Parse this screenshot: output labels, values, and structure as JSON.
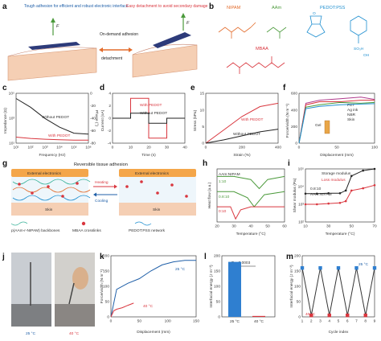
{
  "panels": {
    "a": {
      "label": "a",
      "left_caption": "Tough adhesion for efficient and robust electronic interface",
      "right_caption": "Easy detachment to avoid secondary damage",
      "arrow_top": "On-demand adhesion",
      "arrow_bottom": "detachment",
      "force_left": "F",
      "force_right": "F"
    },
    "b": {
      "label": "b",
      "nipam": "NIPAM",
      "aam": "AAm",
      "pedot": "PEDOT:PSS",
      "mbaa": "MBAA",
      "pss_sub": "SO₃H",
      "pss_o": "O",
      "oh": "OH"
    },
    "c": {
      "label": "c",
      "ylabel": "Impedance (Ω)",
      "ylabel2": "Phase (°)",
      "xlabel": "Frequency (Hz)",
      "legend1": "Without PEDOT",
      "legend2": "With PEDOT"
    },
    "d": {
      "label": "d",
      "ylabel": "Current (nA)",
      "xlabel": "Time (s)",
      "legend1": "With PEDOT",
      "legend2": "Without PEDOT"
    },
    "e": {
      "label": "e",
      "ylabel": "Stress (kPa)",
      "xlabel": "Strain (%)",
      "legend1": "With PEDOT",
      "legend2": "Without PEDOT"
    },
    "f": {
      "label": "f",
      "ylabel": "Force/width (N m⁻¹)",
      "xlabel": "Displacement (mm)",
      "legend": [
        "PET",
        "Ag ink",
        "NBR",
        "Skin"
      ],
      "gel": "Gel"
    },
    "g": {
      "label": "g",
      "title": "Reversible tissue adhesion",
      "ext_left": "External electronics",
      "ext_right": "External electronics",
      "heating": "Heating",
      "cooling": "Cooling",
      "skin_left": "Skin",
      "skin_right": "Skin",
      "legend1": "p(AAm-r-NIPAM) backbones",
      "legend2": "MBAA crosslinks",
      "legend3": "PEDOT:PSS network"
    },
    "h": {
      "label": "h",
      "ylabel": "Heat flow (a.u.)",
      "xlabel": "Temperature (°C)",
      "header": "AAm:NIPAM",
      "r1": "1:10",
      "r2": "0.8:10",
      "r3": "0:10"
    },
    "i": {
      "label": "i",
      "ylabel": "Shear modulus (Pa)",
      "xlabel": "Temperature (°C)",
      "legend1": "Storage modulus",
      "legend2": "Loss modulus",
      "ratio": "0.8:10",
      "ratio2": "AAm:NIPAM"
    },
    "j": {
      "label": "j",
      "t1": "25 °C",
      "t2": "40 °C"
    },
    "k": {
      "label": "k",
      "ylabel": "Force/width (N m⁻¹)",
      "xlabel": "Displacement (mm)",
      "legend1": "25 °C",
      "legend2": "40 °C"
    },
    "l": {
      "label": "l",
      "ylabel": "Interfacial energy (J m⁻²)",
      "pval": "P = 0.0003",
      "c1": "25 °C",
      "c2": "40 °C"
    },
    "m": {
      "label": "m",
      "ylabel": "Interfacial energy (J m⁻²)",
      "xlabel": "Cycle index",
      "t1": "25 °C",
      "t2": "40 °C"
    }
  },
  "colors": {
    "red": "#d9363e",
    "blue": "#1f5fa8",
    "black": "#222222",
    "orange": "#e36c2c",
    "green": "#4b9a3b",
    "lightblue": "#1f8fd0",
    "skin": "#f2c6a8"
  },
  "chart_data": [
    {
      "panel": "c",
      "type": "line",
      "x": [
        10,
        100,
        1000,
        10000,
        100000,
        1000000
      ],
      "xlog": true,
      "ylog": true,
      "ylim": [
        10,
        1000000
      ],
      "xticks": [
        "10¹",
        "10²",
        "10³",
        "10⁴",
        "10⁵",
        "10⁶"
      ],
      "yticks": [
        "10¹",
        "10³",
        "10⁵"
      ],
      "y2ticks": [
        "0",
        "-20",
        "-40",
        "-60",
        "-80"
      ],
      "series": [
        {
          "name": "Without PEDOT",
          "values": [
            300000,
            40000,
            3000,
            400,
            100,
            80
          ]
        },
        {
          "name": "With PEDOT",
          "values": [
            40,
            30,
            25,
            22,
            20,
            20
          ]
        }
      ]
    },
    {
      "panel": "d",
      "type": "line",
      "xticks": [
        "0",
        "10",
        "20",
        "30",
        "40"
      ],
      "yticks": [
        "-4",
        "-2",
        "0",
        "2",
        "4"
      ],
      "series": [
        {
          "name": "With PEDOT",
          "x": [
            0,
            10,
            10,
            20,
            20,
            30,
            30,
            40
          ],
          "values": [
            0,
            0,
            4,
            4,
            -4,
            -4,
            0,
            0
          ]
        },
        {
          "name": "Without PEDOT",
          "x": [
            0,
            10,
            10,
            20,
            20,
            30,
            30,
            40
          ],
          "values": [
            0,
            0,
            1,
            1,
            -1,
            -1,
            0,
            0
          ]
        }
      ]
    },
    {
      "panel": "e",
      "type": "line",
      "xticks": [
        "0",
        "200",
        "400"
      ],
      "yticks": [
        "0",
        "5",
        "10",
        "15"
      ],
      "series": [
        {
          "name": "With PEDOT",
          "x": [
            0,
            100,
            200,
            300,
            400
          ],
          "values": [
            0,
            4,
            8,
            11,
            12
          ]
        },
        {
          "name": "Without PEDOT",
          "x": [
            0,
            100,
            200,
            300,
            400
          ],
          "values": [
            0,
            1,
            2.2,
            3.4,
            4.2
          ]
        }
      ]
    },
    {
      "panel": "f",
      "type": "line",
      "xticks": [
        "0",
        "50",
        "100"
      ],
      "yticks": [
        "0",
        "200",
        "400",
        "600"
      ],
      "series": [
        {
          "name": "PET",
          "x": [
            0,
            10,
            30,
            60,
            90,
            110
          ],
          "values": [
            0,
            520,
            560,
            580,
            600,
            570
          ]
        },
        {
          "name": "Ag ink",
          "x": [
            0,
            10,
            30,
            60,
            90,
            110
          ],
          "values": [
            0,
            500,
            540,
            540,
            560,
            560
          ]
        },
        {
          "name": "NBR",
          "x": [
            0,
            10,
            30,
            60,
            90,
            110
          ],
          "values": [
            0,
            470,
            500,
            530,
            520,
            530
          ]
        },
        {
          "name": "Skin",
          "x": [
            0,
            10,
            30,
            60,
            90,
            110
          ],
          "values": [
            0,
            450,
            480,
            500,
            510,
            515
          ]
        }
      ]
    },
    {
      "panel": "h",
      "type": "line",
      "xticks": [
        "20",
        "30",
        "40",
        "50",
        "60"
      ],
      "series": [
        {
          "name": "1:10",
          "x": [
            20,
            30,
            40,
            45,
            50,
            60
          ],
          "values": [
            3,
            3,
            2.8,
            2.2,
            2.8,
            3
          ]
        },
        {
          "name": "0.8:10",
          "x": [
            20,
            30,
            38,
            42,
            48,
            60
          ],
          "values": [
            2,
            2,
            1.6,
            1.0,
            1.8,
            2
          ]
        },
        {
          "name": "0:10",
          "x": [
            20,
            28,
            31,
            34,
            40,
            60
          ],
          "values": [
            1,
            1,
            0.2,
            0.8,
            1,
            1
          ]
        }
      ]
    },
    {
      "panel": "i",
      "type": "line",
      "ylog": true,
      "xticks": [
        "10",
        "30",
        "50",
        "70"
      ],
      "yticks": [
        "10²",
        "10³",
        "10⁴",
        "10⁵"
      ],
      "series": [
        {
          "name": "Storage modulus",
          "x": [
            10,
            20,
            30,
            40,
            45,
            50,
            60,
            70
          ],
          "values": [
            4000,
            4000,
            4200,
            4200,
            6000,
            40000,
            80000,
            100000
          ]
        },
        {
          "name": "Loss modulus",
          "x": [
            10,
            20,
            30,
            40,
            45,
            50,
            60,
            70
          ],
          "values": [
            1000,
            1000,
            1100,
            1200,
            1500,
            6000,
            8000,
            12000
          ]
        }
      ]
    },
    {
      "panel": "k",
      "type": "line",
      "xticks": [
        "0",
        "50",
        "100",
        "150"
      ],
      "yticks": [
        "0",
        "50",
        "100",
        "150",
        "200"
      ],
      "series": [
        {
          "name": "25 °C",
          "x": [
            0,
            10,
            30,
            50,
            70,
            90,
            110,
            130,
            150
          ],
          "values": [
            0,
            90,
            110,
            125,
            150,
            170,
            180,
            185,
            185
          ]
        },
        {
          "name": "40 °C",
          "x": [
            0,
            5,
            10,
            20,
            30,
            40
          ],
          "values": [
            0,
            20,
            25,
            30,
            38,
            45
          ]
        }
      ]
    },
    {
      "panel": "l",
      "type": "bar",
      "categories": [
        "25 °C",
        "40 °C"
      ],
      "values": [
        180,
        3
      ],
      "yticks": [
        "0",
        "50",
        "100",
        "150",
        "200"
      ]
    },
    {
      "panel": "m",
      "type": "line",
      "x": [
        1,
        2,
        3,
        4,
        5,
        6,
        7,
        8,
        9
      ],
      "values": [
        160,
        5,
        160,
        5,
        160,
        5,
        160,
        5,
        160
      ],
      "xticks": [
        "1",
        "2",
        "3",
        "4",
        "5",
        "6",
        "7",
        "8",
        "9"
      ],
      "yticks": [
        "0",
        "50",
        "100",
        "150",
        "200"
      ]
    }
  ]
}
